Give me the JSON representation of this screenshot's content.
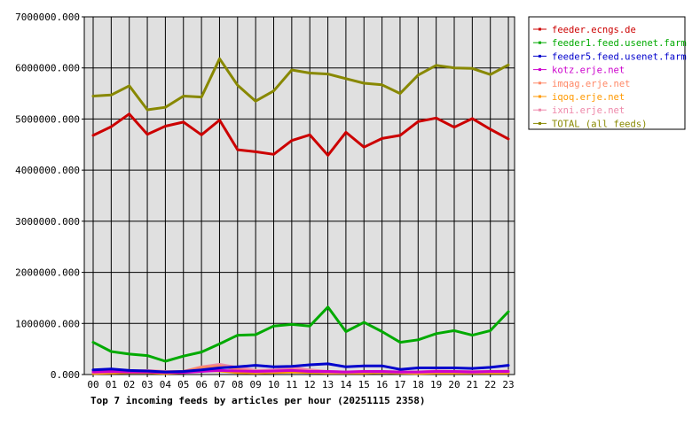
{
  "chart_data": {
    "type": "line",
    "title": "Top 7 incoming feeds by articles per hour (20251115 2358)",
    "xlabel": "",
    "ylabel": "",
    "ylim": [
      0,
      7000000
    ],
    "yticks": [
      "0.000",
      "1000000.000",
      "2000000.000",
      "3000000.000",
      "4000000.000",
      "5000000.000",
      "6000000.000",
      "7000000.000"
    ],
    "grid": true,
    "legend_position": "right",
    "categories": [
      "00",
      "01",
      "02",
      "03",
      "04",
      "05",
      "06",
      "07",
      "08",
      "09",
      "10",
      "11",
      "12",
      "13",
      "14",
      "15",
      "16",
      "17",
      "18",
      "19",
      "20",
      "21",
      "22",
      "23"
    ],
    "series": [
      {
        "name": "feeder.ecngs.de",
        "color": "#cc0000",
        "values": [
          4680000,
          4850000,
          5100000,
          4700000,
          4860000,
          4940000,
          4690000,
          4980000,
          4400000,
          4360000,
          4310000,
          4580000,
          4690000,
          4290000,
          4740000,
          4450000,
          4620000,
          4680000,
          4950000,
          5020000,
          4840000,
          5010000,
          4800000,
          4610000
        ]
      },
      {
        "name": "feeder1.feed.usenet.farm",
        "color": "#00aa00",
        "values": [
          630000,
          450000,
          400000,
          370000,
          260000,
          360000,
          440000,
          600000,
          770000,
          780000,
          950000,
          980000,
          950000,
          1320000,
          840000,
          1020000,
          840000,
          630000,
          680000,
          800000,
          860000,
          770000,
          860000,
          1230000
        ]
      },
      {
        "name": "feeder5.feed.usenet.farm",
        "color": "#0000cc",
        "values": [
          90000,
          110000,
          80000,
          70000,
          50000,
          60000,
          90000,
          130000,
          150000,
          180000,
          150000,
          160000,
          190000,
          210000,
          150000,
          170000,
          170000,
          100000,
          130000,
          130000,
          130000,
          120000,
          140000,
          180000
        ]
      },
      {
        "name": "kotz.erje.net",
        "color": "#cc00cc",
        "values": [
          50000,
          60000,
          50000,
          50000,
          40000,
          40000,
          60000,
          80000,
          70000,
          60000,
          70000,
          80000,
          60000,
          60000,
          50000,
          60000,
          60000,
          50000,
          50000,
          60000,
          60000,
          50000,
          60000,
          60000
        ]
      },
      {
        "name": "imqag.erje.net",
        "color": "#ff8866",
        "values": [
          40000,
          50000,
          60000,
          60000,
          50000,
          60000,
          140000,
          170000,
          100000,
          50000,
          60000,
          90000,
          60000,
          40000,
          40000,
          50000,
          50000,
          40000,
          40000,
          50000,
          50000,
          40000,
          50000,
          50000
        ]
      },
      {
        "name": "iqoq.erje.net",
        "color": "#ff9900",
        "values": [
          20000,
          30000,
          40000,
          40000,
          20000,
          40000,
          80000,
          70000,
          40000,
          30000,
          40000,
          50000,
          40000,
          30000,
          30000,
          30000,
          40000,
          30000,
          20000,
          30000,
          30000,
          30000,
          30000,
          30000
        ]
      },
      {
        "name": "ixni.erje.net",
        "color": "#ee88aa",
        "values": [
          60000,
          70000,
          70000,
          80000,
          60000,
          60000,
          150000,
          200000,
          140000,
          80000,
          90000,
          140000,
          90000,
          60000,
          50000,
          60000,
          60000,
          50000,
          50000,
          70000,
          60000,
          60000,
          60000,
          70000
        ]
      },
      {
        "name": "TOTAL (all feeds)",
        "color": "#888800",
        "values": [
          5450000,
          5470000,
          5650000,
          5180000,
          5230000,
          5450000,
          5430000,
          6180000,
          5660000,
          5350000,
          5550000,
          5960000,
          5900000,
          5880000,
          5790000,
          5700000,
          5670000,
          5500000,
          5860000,
          6050000,
          6000000,
          5990000,
          5870000,
          6060000
        ]
      }
    ]
  }
}
